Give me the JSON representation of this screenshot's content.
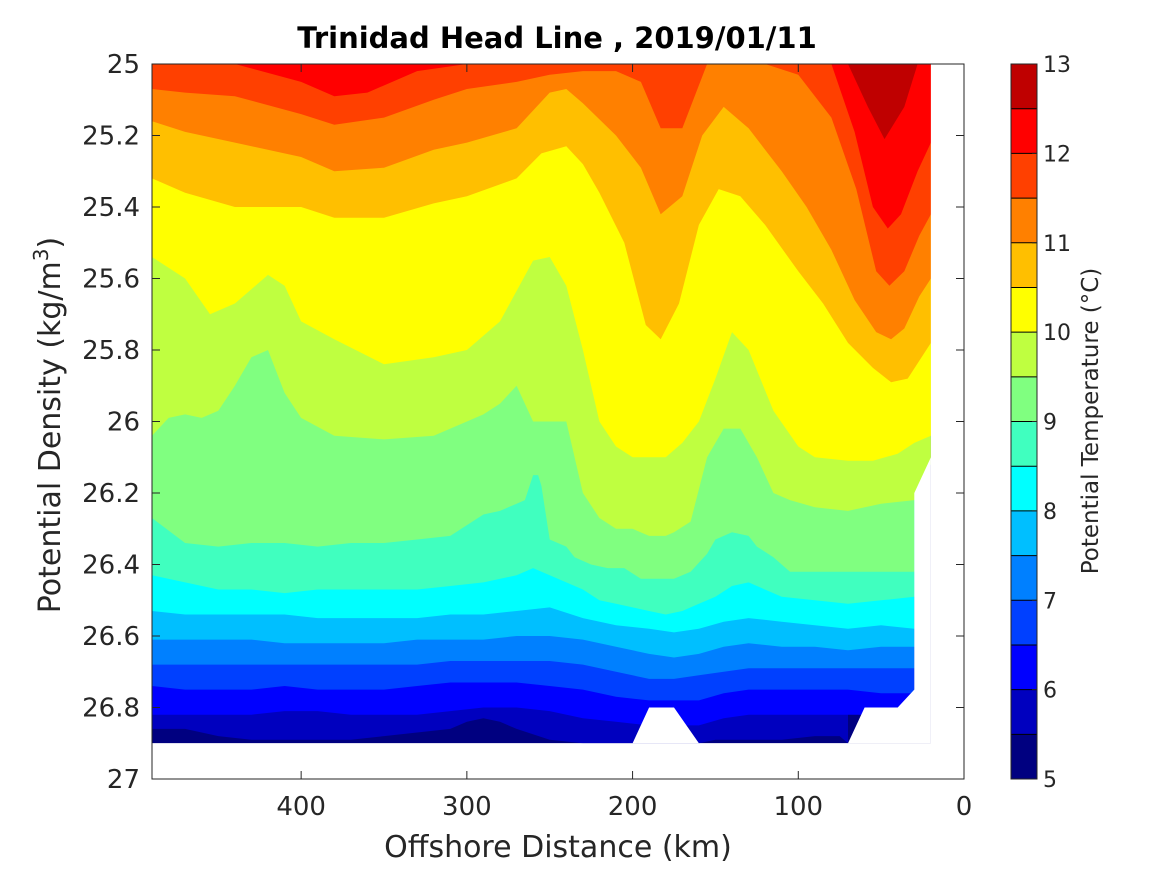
{
  "chart_data": {
    "type": "heatmap",
    "subtype": "filled-contour",
    "title": "Trinidad Head Line , 2019/01/11",
    "xlabel": "Offshore Distance (km)",
    "ylabel_prefix": "Potential Density (kg/m",
    "ylabel_sup": "3",
    "ylabel_suffix": ")",
    "colorbar_label": "Potential Temperature (°C)",
    "x_axis": {
      "range": [
        490,
        0
      ],
      "reversed": true,
      "ticks": [
        400,
        300,
        200,
        100,
        0
      ],
      "tick_labels": [
        "400",
        "300",
        "200",
        "100",
        "0"
      ]
    },
    "y_axis": {
      "range": [
        25,
        27
      ],
      "reversed": true,
      "ticks": [
        25,
        25.2,
        25.4,
        25.6,
        25.8,
        26,
        26.2,
        26.4,
        26.6,
        26.8,
        27
      ],
      "tick_labels": [
        "25",
        "25.2",
        "25.4",
        "25.6",
        "25.8",
        "26",
        "26.2",
        "26.4",
        "26.6",
        "26.8",
        "27"
      ]
    },
    "colorbar": {
      "range": [
        5,
        13
      ],
      "levels": [
        5,
        5.5,
        6,
        6.5,
        7,
        7.5,
        8,
        8.5,
        9,
        9.5,
        10,
        10.5,
        11,
        11.5,
        12,
        12.5,
        13
      ],
      "colors": [
        "#000080",
        "#0000BF",
        "#0000FF",
        "#0040FF",
        "#0080FF",
        "#00BFFF",
        "#00FFFF",
        "#40FFBF",
        "#80FF80",
        "#BFFF40",
        "#FFFF00",
        "#FFBF00",
        "#FF8000",
        "#FF4000",
        "#FF0000",
        "#BF0000"
      ],
      "ticks": [
        5,
        6,
        7,
        8,
        9,
        10,
        11,
        12,
        13
      ],
      "tick_labels": [
        "5",
        "6",
        "7",
        "8",
        "9",
        "10",
        "11",
        "12",
        "13"
      ]
    },
    "data_domain": {
      "x_range": [
        490,
        20
      ],
      "y_range": [
        25,
        26.9
      ]
    },
    "grid": false,
    "isotherms": [
      {
        "level": 12.5,
        "x": [
          70,
          58,
          48,
          36,
          28
        ],
        "y": [
          25.0,
          25.12,
          25.21,
          25.12,
          25.0
        ]
      },
      {
        "level": 12.0,
        "x": [
          490,
          470,
          440,
          400,
          380,
          360,
          330,
          300,
          280,
          250,
          230,
          200,
          175,
          100,
          80,
          66,
          55,
          46,
          38,
          28,
          20
        ],
        "y": [
          25.0,
          25.0,
          25.0,
          25.05,
          25.09,
          25.08,
          25.02,
          25.0,
          25.0,
          25.0,
          25.0,
          25.0,
          25.0,
          25.0,
          25.0,
          25.19,
          25.4,
          25.46,
          25.42,
          25.3,
          25.22
        ]
      },
      {
        "level": 11.5,
        "x": [
          490,
          470,
          440,
          400,
          380,
          350,
          320,
          300,
          270,
          250,
          230,
          210,
          195,
          183,
          170,
          155,
          140,
          120,
          100,
          80,
          65,
          53,
          45,
          36,
          27,
          20
        ],
        "y": [
          25.07,
          25.08,
          25.09,
          25.14,
          25.17,
          25.15,
          25.1,
          25.07,
          25.05,
          25.03,
          25.02,
          25.02,
          25.05,
          25.18,
          25.18,
          25.0,
          25.0,
          25.0,
          25.03,
          25.15,
          25.35,
          25.58,
          25.62,
          25.58,
          25.48,
          25.42
        ]
      },
      {
        "level": 11.0,
        "x": [
          490,
          470,
          440,
          400,
          380,
          350,
          320,
          300,
          270,
          250,
          240,
          230,
          210,
          195,
          183,
          170,
          158,
          145,
          130,
          110,
          95,
          80,
          66,
          53,
          44,
          36,
          27,
          20
        ],
        "y": [
          25.16,
          25.19,
          25.22,
          25.26,
          25.3,
          25.29,
          25.24,
          25.22,
          25.18,
          25.08,
          25.07,
          25.11,
          25.2,
          25.29,
          25.42,
          25.37,
          25.2,
          25.12,
          25.18,
          25.3,
          25.4,
          25.52,
          25.66,
          25.75,
          25.77,
          25.74,
          25.65,
          25.6
        ]
      },
      {
        "level": 10.5,
        "x": [
          490,
          470,
          440,
          400,
          380,
          350,
          320,
          300,
          270,
          255,
          240,
          230,
          220,
          205,
          192,
          183,
          172,
          160,
          148,
          135,
          120,
          100,
          85,
          70,
          55,
          44,
          34,
          27,
          20
        ],
        "y": [
          25.32,
          25.36,
          25.4,
          25.4,
          25.43,
          25.43,
          25.39,
          25.37,
          25.32,
          25.25,
          25.23,
          25.28,
          25.36,
          25.5,
          25.73,
          25.77,
          25.67,
          25.45,
          25.35,
          25.37,
          25.45,
          25.58,
          25.67,
          25.78,
          25.85,
          25.89,
          25.88,
          25.83,
          25.78
        ]
      },
      {
        "level": 10.0,
        "x": [
          490,
          470,
          455,
          440,
          420,
          410,
          400,
          380,
          350,
          320,
          300,
          280,
          260,
          250,
          240,
          230,
          220,
          210,
          200,
          190,
          180,
          170,
          160,
          150,
          140,
          130,
          115,
          100,
          90,
          70,
          55,
          40,
          30,
          20
        ],
        "y": [
          25.54,
          25.6,
          25.7,
          25.67,
          25.59,
          25.62,
          25.72,
          25.77,
          25.84,
          25.82,
          25.8,
          25.72,
          25.55,
          25.54,
          25.62,
          25.8,
          26.0,
          26.07,
          26.1,
          26.1,
          26.1,
          26.06,
          26.0,
          25.88,
          25.75,
          25.8,
          25.97,
          26.07,
          26.1,
          26.11,
          26.11,
          26.09,
          26.06,
          26.04
        ]
      },
      {
        "level": 9.5,
        "x": [
          490,
          480,
          470,
          460,
          450,
          440,
          430,
          420,
          410,
          400,
          380,
          350,
          320,
          300,
          290,
          280,
          270,
          260,
          250,
          245,
          240,
          230,
          220,
          210,
          200,
          190,
          180,
          175,
          165,
          155,
          145,
          135,
          125,
          115,
          105,
          90,
          70,
          50,
          30,
          20
        ],
        "y": [
          26.04,
          25.99,
          25.98,
          25.99,
          25.97,
          25.9,
          25.82,
          25.8,
          25.92,
          25.99,
          26.04,
          26.05,
          26.04,
          26.0,
          25.98,
          25.95,
          25.9,
          26.0,
          26.0,
          26.0,
          26.0,
          26.2,
          26.27,
          26.3,
          26.3,
          26.32,
          26.32,
          26.31,
          26.28,
          26.1,
          26.02,
          26.02,
          26.1,
          26.2,
          26.22,
          26.24,
          26.25,
          26.23,
          26.22,
          26.12
        ]
      },
      {
        "level": 9.0,
        "x": [
          490,
          470,
          450,
          430,
          410,
          390,
          370,
          350,
          330,
          310,
          290,
          280,
          270,
          265,
          260,
          257,
          255,
          250,
          240,
          235,
          225,
          215,
          205,
          195,
          185,
          175,
          165,
          155,
          150,
          140,
          130,
          125,
          115,
          105,
          95,
          80,
          60,
          40,
          30
        ],
        "y": [
          26.27,
          26.34,
          26.35,
          26.34,
          26.34,
          26.35,
          26.34,
          26.34,
          26.33,
          26.32,
          26.26,
          26.25,
          26.23,
          26.22,
          26.15,
          26.15,
          26.18,
          26.33,
          26.35,
          26.38,
          26.4,
          26.41,
          26.41,
          26.44,
          26.44,
          26.44,
          26.42,
          26.37,
          26.33,
          26.31,
          26.32,
          26.35,
          26.38,
          26.42,
          26.42,
          26.42,
          26.42,
          26.42,
          26.42
        ]
      },
      {
        "level": 8.5,
        "x": [
          490,
          470,
          450,
          430,
          410,
          390,
          370,
          350,
          330,
          310,
          290,
          270,
          260,
          250,
          240,
          230,
          220,
          210,
          200,
          190,
          180,
          170,
          160,
          150,
          140,
          130,
          110,
          90,
          70,
          50,
          30
        ],
        "y": [
          26.43,
          26.45,
          26.47,
          26.47,
          26.48,
          26.47,
          26.47,
          26.47,
          26.47,
          26.46,
          26.45,
          26.43,
          26.41,
          26.43,
          26.45,
          26.47,
          26.5,
          26.51,
          26.52,
          26.53,
          26.54,
          26.53,
          26.51,
          26.49,
          26.46,
          26.45,
          26.49,
          26.5,
          26.51,
          26.5,
          26.49
        ]
      },
      {
        "level": 8.0,
        "x": [
          490,
          470,
          450,
          430,
          410,
          390,
          370,
          350,
          330,
          310,
          290,
          270,
          250,
          230,
          210,
          190,
          175,
          160,
          145,
          130,
          110,
          90,
          70,
          50,
          30
        ],
        "y": [
          26.53,
          26.54,
          26.54,
          26.54,
          26.54,
          26.55,
          26.55,
          26.55,
          26.55,
          26.54,
          26.54,
          26.53,
          26.52,
          26.55,
          26.57,
          26.58,
          26.59,
          26.58,
          26.56,
          26.55,
          26.56,
          26.57,
          26.58,
          26.57,
          26.58
        ]
      },
      {
        "level": 7.5,
        "x": [
          490,
          470,
          450,
          430,
          410,
          390,
          370,
          350,
          330,
          310,
          290,
          270,
          250,
          230,
          210,
          190,
          175,
          160,
          145,
          130,
          110,
          90,
          70,
          50,
          30
        ],
        "y": [
          26.61,
          26.61,
          26.61,
          26.61,
          26.62,
          26.62,
          26.62,
          26.62,
          26.61,
          26.61,
          26.61,
          26.6,
          26.6,
          26.61,
          26.63,
          26.65,
          26.66,
          26.65,
          26.63,
          26.62,
          26.63,
          26.63,
          26.64,
          26.63,
          26.63
        ]
      },
      {
        "level": 7.0,
        "x": [
          490,
          470,
          450,
          430,
          410,
          390,
          370,
          350,
          330,
          310,
          290,
          270,
          250,
          230,
          210,
          190,
          175,
          160,
          145,
          130,
          110,
          90,
          70,
          50,
          30
        ],
        "y": [
          26.68,
          26.68,
          26.68,
          26.68,
          26.68,
          26.68,
          26.68,
          26.68,
          26.68,
          26.67,
          26.67,
          26.67,
          26.67,
          26.68,
          26.7,
          26.72,
          26.72,
          26.71,
          26.7,
          26.69,
          26.69,
          26.69,
          26.69,
          26.69,
          26.69
        ]
      },
      {
        "level": 6.5,
        "x": [
          490,
          470,
          450,
          430,
          410,
          390,
          370,
          350,
          330,
          310,
          290,
          270,
          250,
          230,
          210,
          190,
          175,
          160,
          145,
          130,
          110,
          90,
          70,
          50,
          30
        ],
        "y": [
          26.74,
          26.75,
          26.75,
          26.75,
          26.74,
          26.75,
          26.75,
          26.75,
          26.74,
          26.73,
          26.73,
          26.73,
          26.74,
          26.75,
          26.77,
          26.78,
          26.78,
          26.78,
          26.76,
          26.75,
          26.75,
          26.75,
          26.75,
          26.76,
          26.76
        ]
      },
      {
        "level": 6.0,
        "x": [
          490,
          470,
          450,
          430,
          410,
          390,
          370,
          350,
          330,
          310,
          290,
          270,
          250,
          230,
          210,
          190,
          175,
          160,
          145,
          130,
          110,
          90,
          70,
          50,
          30
        ],
        "y": [
          26.82,
          26.82,
          26.82,
          26.82,
          26.81,
          26.81,
          26.82,
          26.82,
          26.82,
          26.81,
          26.8,
          26.8,
          26.81,
          26.83,
          26.84,
          26.85,
          26.85,
          26.85,
          26.83,
          26.82,
          26.82,
          26.82,
          26.82,
          26.82,
          26.82
        ]
      },
      {
        "level": 5.5,
        "x": [
          490,
          470,
          450,
          430,
          410,
          390,
          370,
          350,
          330,
          310,
          300,
          290,
          280,
          270,
          250,
          230,
          210,
          200,
          160,
          150,
          140,
          130,
          110,
          90,
          75,
          70
        ],
        "y": [
          26.86,
          26.86,
          26.88,
          26.89,
          26.89,
          26.89,
          26.89,
          26.88,
          26.87,
          26.86,
          26.84,
          26.83,
          26.84,
          26.86,
          26.89,
          26.9,
          26.9,
          26.9,
          26.9,
          26.89,
          26.89,
          26.89,
          26.89,
          26.88,
          26.88,
          26.9
        ]
      }
    ]
  }
}
